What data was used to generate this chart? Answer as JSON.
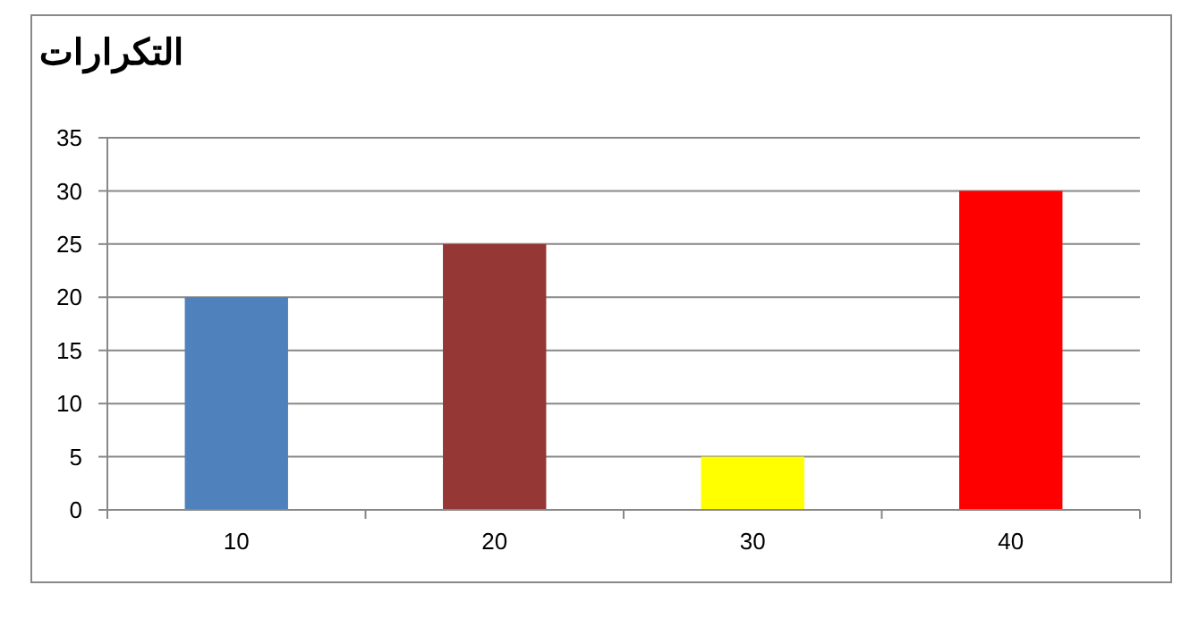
{
  "chart_data": {
    "type": "bar",
    "title": "التكرارات",
    "categories": [
      "10",
      "20",
      "30",
      "40"
    ],
    "values": [
      20,
      25,
      5,
      30
    ],
    "colors": [
      "#4f81bd",
      "#953735",
      "#ffff00",
      "#ff0000"
    ],
    "ylim": [
      0,
      35
    ],
    "yticks": [
      0,
      5,
      10,
      15,
      20,
      25,
      30,
      35
    ],
    "grid": "y"
  }
}
